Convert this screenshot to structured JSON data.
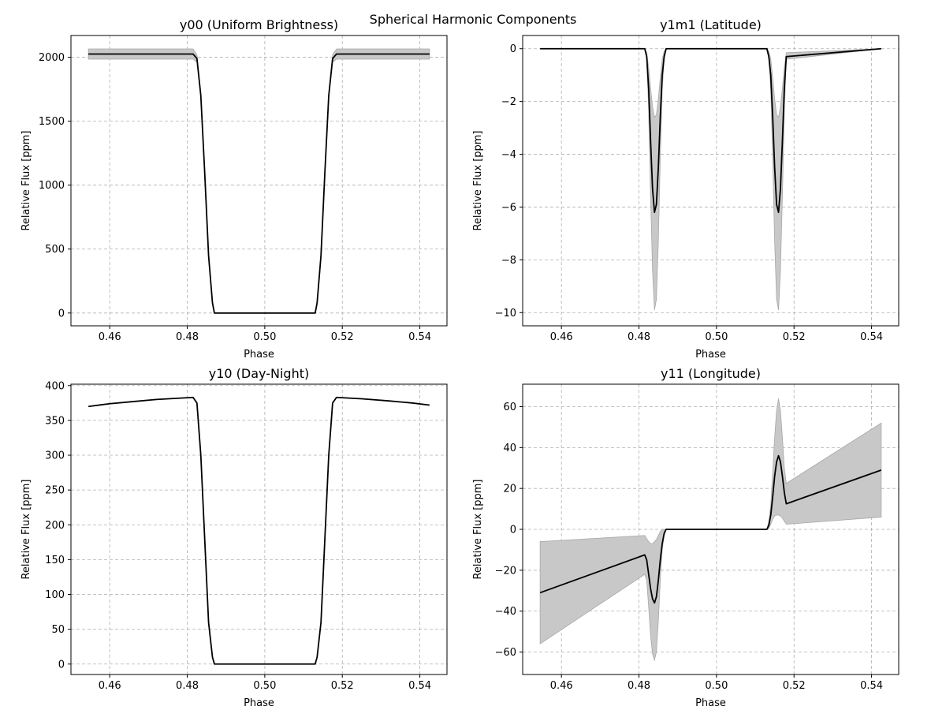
{
  "figure": {
    "suptitle": "Spherical Harmonic Components"
  },
  "chart_data": [
    {
      "type": "line",
      "title": "y00 (Uniform Brightness)",
      "xlabel": "Phase",
      "ylabel": "Relative Flux [ppm]",
      "xlim": [
        0.45,
        0.547
      ],
      "ylim": [
        -100,
        2170
      ],
      "xticks": [
        0.46,
        0.48,
        0.5,
        0.52,
        0.54
      ],
      "xtick_labels": [
        "0.46",
        "0.48",
        "0.50",
        "0.52",
        "0.54"
      ],
      "yticks": [
        0,
        500,
        1000,
        1500,
        2000
      ],
      "ytick_labels": [
        "0",
        "500",
        "1000",
        "1500",
        "2000"
      ],
      "grid": true,
      "line_color": "#000000",
      "band_color": "#c8c8c8",
      "series": [
        {
          "x": [
            0.4545,
            0.47,
            0.4815,
            0.4825,
            0.4835,
            0.4845,
            0.4855,
            0.4865,
            0.487,
            0.5,
            0.513,
            0.5135,
            0.5145,
            0.5155,
            0.5165,
            0.5175,
            0.5185,
            0.53,
            0.5425
          ],
          "y": [
            2025,
            2025,
            2025,
            1990,
            1700,
            1100,
            450,
            80,
            0,
            0,
            0,
            80,
            450,
            1100,
            1700,
            1990,
            2025,
            2025,
            2025
          ],
          "lower": [
            1985,
            1985,
            1985,
            1960,
            1690,
            1095,
            448,
            80,
            0,
            0,
            0,
            80,
            448,
            1095,
            1690,
            1960,
            1985,
            1985,
            1985
          ],
          "upper": [
            2065,
            2065,
            2065,
            2020,
            1710,
            1105,
            452,
            80,
            0,
            0,
            0,
            80,
            452,
            1105,
            1710,
            2020,
            2065,
            2065,
            2065
          ]
        }
      ]
    },
    {
      "type": "line",
      "title": "y1m1 (Latitude)",
      "xlabel": "Phase",
      "ylabel": "Relative Flux [ppm]",
      "xlim": [
        0.45,
        0.547
      ],
      "ylim": [
        -10.5,
        0.5
      ],
      "xticks": [
        0.46,
        0.48,
        0.5,
        0.52,
        0.54
      ],
      "xtick_labels": [
        "0.46",
        "0.48",
        "0.50",
        "0.52",
        "0.54"
      ],
      "yticks": [
        -10,
        -8,
        -6,
        -4,
        -2,
        0
      ],
      "ytick_labels": [
        "−10",
        "−8",
        "−6",
        "−4",
        "−2",
        "0"
      ],
      "grid": true,
      "line_color": "#000000",
      "band_color": "#c8c8c8",
      "series": [
        {
          "x": [
            0.4545,
            0.4815,
            0.482,
            0.4825,
            0.483,
            0.4835,
            0.484,
            0.4845,
            0.485,
            0.4855,
            0.486,
            0.4865,
            0.487,
            0.5,
            0.513,
            0.5135,
            0.514,
            0.5145,
            0.515,
            0.5155,
            0.516,
            0.5165,
            0.517,
            0.5175,
            0.518,
            0.5425
          ],
          "y": [
            0,
            0,
            -0.3,
            -1.5,
            -3.5,
            -5.3,
            -6.2,
            -5.9,
            -4.5,
            -2.6,
            -1.0,
            -0.3,
            0,
            0,
            0,
            -0.3,
            -1.0,
            -2.6,
            -4.5,
            -5.9,
            -6.2,
            -5.3,
            -3.5,
            -1.5,
            -0.3,
            0
          ],
          "lower": [
            0,
            0,
            -0.4,
            -2.4,
            -5.6,
            -8.4,
            -9.9,
            -9.5,
            -7.3,
            -4.2,
            -1.6,
            -0.4,
            0,
            0,
            0,
            -0.4,
            -1.6,
            -4.2,
            -7.3,
            -9.5,
            -9.9,
            -8.4,
            -5.6,
            -2.4,
            -0.4,
            0
          ],
          "upper": [
            0,
            0,
            -0.15,
            -0.7,
            -1.5,
            -2.2,
            -2.6,
            -2.5,
            -1.9,
            -1.1,
            -0.4,
            -0.1,
            0,
            0,
            0,
            -0.1,
            -0.4,
            -1.1,
            -1.9,
            -2.5,
            -2.6,
            -2.2,
            -1.5,
            -0.7,
            -0.15,
            0
          ]
        }
      ]
    },
    {
      "type": "line",
      "title": "y10 (Day-Night)",
      "xlabel": "Phase",
      "ylabel": "Relative Flux [ppm]",
      "xlim": [
        0.45,
        0.547
      ],
      "ylim": [
        -15,
        402
      ],
      "xticks": [
        0.46,
        0.48,
        0.5,
        0.52,
        0.54
      ],
      "xtick_labels": [
        "0.46",
        "0.48",
        "0.50",
        "0.52",
        "0.54"
      ],
      "yticks": [
        0,
        50,
        100,
        150,
        200,
        250,
        300,
        350,
        400
      ],
      "ytick_labels": [
        "0",
        "50",
        "100",
        "150",
        "200",
        "250",
        "300",
        "350",
        "400"
      ],
      "grid": true,
      "line_color": "#000000",
      "band_color": "#c8c8c8",
      "series": [
        {
          "x": [
            0.4545,
            0.46,
            0.466,
            0.472,
            0.4815,
            0.4825,
            0.4835,
            0.4845,
            0.4855,
            0.4865,
            0.487,
            0.5,
            0.513,
            0.5135,
            0.5145,
            0.5155,
            0.5165,
            0.5175,
            0.5185,
            0.525,
            0.532,
            0.538,
            0.5425
          ],
          "y": [
            370,
            374,
            377,
            380,
            383,
            375,
            300,
            180,
            60,
            10,
            0,
            0,
            0,
            10,
            60,
            180,
            300,
            375,
            383,
            381,
            378,
            375,
            372
          ]
        }
      ]
    },
    {
      "type": "line",
      "title": "y11 (Longitude)",
      "xlabel": "Phase",
      "ylabel": "Relative Flux [ppm]",
      "xlim": [
        0.45,
        0.547
      ],
      "ylim": [
        -71,
        71
      ],
      "xticks": [
        0.46,
        0.48,
        0.5,
        0.52,
        0.54
      ],
      "xtick_labels": [
        "0.46",
        "0.48",
        "0.50",
        "0.52",
        "0.54"
      ],
      "yticks": [
        -60,
        -40,
        -20,
        0,
        20,
        40,
        60
      ],
      "ytick_labels": [
        "−60",
        "−40",
        "−20",
        "0",
        "20",
        "40",
        "60"
      ],
      "grid": true,
      "line_color": "#000000",
      "band_color": "#c8c8c8",
      "series": [
        {
          "x": [
            0.4545,
            0.4815,
            0.482,
            0.4825,
            0.483,
            0.4835,
            0.484,
            0.4845,
            0.485,
            0.4855,
            0.486,
            0.4865,
            0.487,
            0.5,
            0.513,
            0.5135,
            0.514,
            0.5145,
            0.515,
            0.5155,
            0.516,
            0.5165,
            0.517,
            0.5175,
            0.518,
            0.5425
          ],
          "y": [
            -31,
            -12.5,
            -15,
            -22,
            -29,
            -34,
            -36,
            -33,
            -25,
            -15,
            -7,
            -2,
            0,
            0,
            0,
            2,
            7,
            16,
            26,
            33,
            36,
            33,
            26,
            18,
            12.5,
            29
          ],
          "lower": [
            -56,
            -22,
            -25,
            -38,
            -52,
            -61,
            -64,
            -60,
            -45,
            -25,
            -10,
            -3,
            0,
            0,
            0,
            0.5,
            2.5,
            5,
            6.5,
            7,
            7,
            6.5,
            5.5,
            4,
            2.5,
            6
          ],
          "upper": [
            -6,
            -3,
            -4.5,
            -6,
            -7,
            -7,
            -6,
            -5,
            -3,
            -1,
            0,
            0,
            0,
            0,
            0,
            4,
            12,
            28,
            45,
            58,
            64,
            58,
            45,
            30,
            22.5,
            52
          ]
        }
      ]
    }
  ]
}
